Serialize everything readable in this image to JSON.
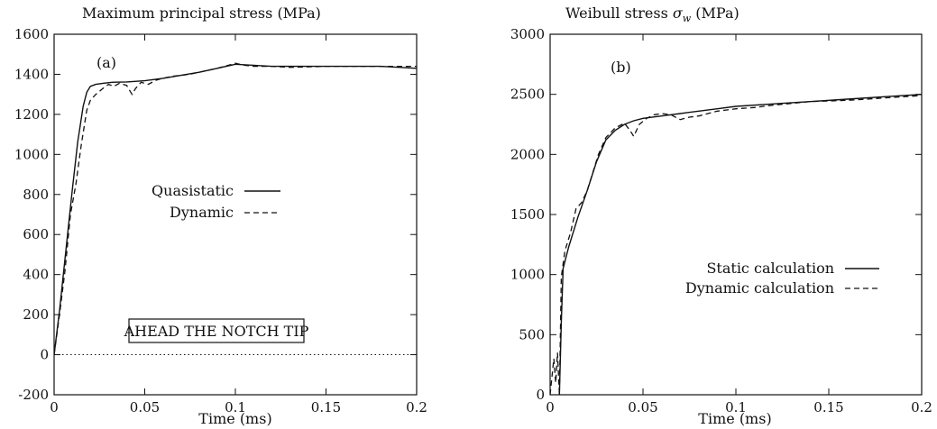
{
  "chart_data": [
    {
      "type": "line",
      "panel_label": "(a)",
      "title": "Maximum principal stress (MPa)",
      "xlabel": "Time (ms)",
      "ylabel": "",
      "xlim": [
        0,
        0.2
      ],
      "ylim": [
        -200,
        1600
      ],
      "xticks": [
        0,
        0.05,
        0.1,
        0.15,
        0.2
      ],
      "yticks": [
        -200,
        0,
        200,
        400,
        600,
        800,
        1000,
        1200,
        1400,
        1600
      ],
      "xtick_labels": [
        "0",
        "0.05",
        "0.1",
        "0.15",
        "0.2"
      ],
      "ytick_labels": [
        "-200",
        "0",
        "200",
        "400",
        "600",
        "800",
        "1000",
        "1200",
        "1400",
        "1600"
      ],
      "annotation": "AHEAD THE NOTCH TIP",
      "reference_line": {
        "y": 0,
        "style": "dotted"
      },
      "legend_position": "center-left",
      "series": [
        {
          "name": "Quasistatic",
          "style": "solid",
          "color": "#111111",
          "x": [
            0,
            0.003,
            0.006,
            0.01,
            0.013,
            0.016,
            0.018,
            0.02,
            0.023,
            0.027,
            0.032,
            0.04,
            0.05,
            0.06,
            0.07,
            0.08,
            0.09,
            0.1,
            0.11,
            0.12,
            0.14,
            0.16,
            0.18,
            0.2
          ],
          "y": [
            0,
            220,
            480,
            820,
            1060,
            1240,
            1310,
            1340,
            1350,
            1355,
            1360,
            1362,
            1368,
            1380,
            1395,
            1410,
            1430,
            1450,
            1445,
            1440,
            1440,
            1440,
            1440,
            1430
          ]
        },
        {
          "name": "Dynamic",
          "style": "dashed",
          "color": "#111111",
          "x": [
            0,
            0.003,
            0.006,
            0.009,
            0.012,
            0.015,
            0.018,
            0.02,
            0.023,
            0.027,
            0.03,
            0.033,
            0.036,
            0.04,
            0.043,
            0.045,
            0.048,
            0.052,
            0.056,
            0.06,
            0.065,
            0.07,
            0.075,
            0.08,
            0.09,
            0.1,
            0.105,
            0.11,
            0.12,
            0.13,
            0.15,
            0.17,
            0.2
          ],
          "y": [
            0,
            200,
            420,
            700,
            850,
            1050,
            1220,
            1270,
            1300,
            1330,
            1350,
            1340,
            1355,
            1345,
            1300,
            1330,
            1360,
            1350,
            1370,
            1380,
            1390,
            1395,
            1400,
            1410,
            1430,
            1455,
            1445,
            1440,
            1440,
            1435,
            1440,
            1440,
            1440
          ]
        }
      ]
    },
    {
      "type": "line",
      "panel_label": "(b)",
      "title": "Weibull stress σw (MPa)",
      "xlabel": "Time (ms)",
      "ylabel": "",
      "xlim": [
        0,
        0.2
      ],
      "ylim": [
        0,
        3000
      ],
      "xticks": [
        0,
        0.05,
        0.1,
        0.15,
        0.2
      ],
      "yticks": [
        0,
        500,
        1000,
        1500,
        2000,
        2500,
        3000
      ],
      "xtick_labels": [
        "0",
        "0.05",
        "0.1",
        "0.15",
        "0.2"
      ],
      "ytick_labels": [
        "0",
        "500",
        "1000",
        "1500",
        "2000",
        "2500",
        "3000"
      ],
      "legend_position": "bottom-right",
      "series": [
        {
          "name": "Static calculation",
          "style": "solid",
          "color": "#111111",
          "x": [
            0.005,
            0.006,
            0.007,
            0.01,
            0.015,
            0.02,
            0.025,
            0.03,
            0.035,
            0.04,
            0.045,
            0.05,
            0.06,
            0.07,
            0.08,
            0.09,
            0.1,
            0.12,
            0.14,
            0.16,
            0.18,
            0.2
          ],
          "y": [
            0,
            600,
            1050,
            1230,
            1480,
            1700,
            1940,
            2120,
            2200,
            2250,
            2280,
            2300,
            2320,
            2340,
            2360,
            2380,
            2400,
            2420,
            2440,
            2460,
            2480,
            2500
          ]
        },
        {
          "name": "Dynamic calculation",
          "style": "dashed",
          "color": "#111111",
          "x": [
            0,
            0.002,
            0.003,
            0.004,
            0.005,
            0.006,
            0.008,
            0.011,
            0.014,
            0.017,
            0.02,
            0.023,
            0.026,
            0.03,
            0.035,
            0.04,
            0.043,
            0.045,
            0.048,
            0.052,
            0.056,
            0.06,
            0.065,
            0.07,
            0.075,
            0.08,
            0.09,
            0.1,
            0.11,
            0.12,
            0.14,
            0.16,
            0.18,
            0.2
          ],
          "y": [
            0,
            300,
            100,
            350,
            0,
            980,
            1200,
            1350,
            1550,
            1600,
            1700,
            1850,
            2000,
            2140,
            2220,
            2260,
            2200,
            2150,
            2250,
            2300,
            2330,
            2340,
            2330,
            2290,
            2310,
            2320,
            2360,
            2380,
            2390,
            2410,
            2440,
            2450,
            2470,
            2490
          ]
        }
      ]
    }
  ]
}
